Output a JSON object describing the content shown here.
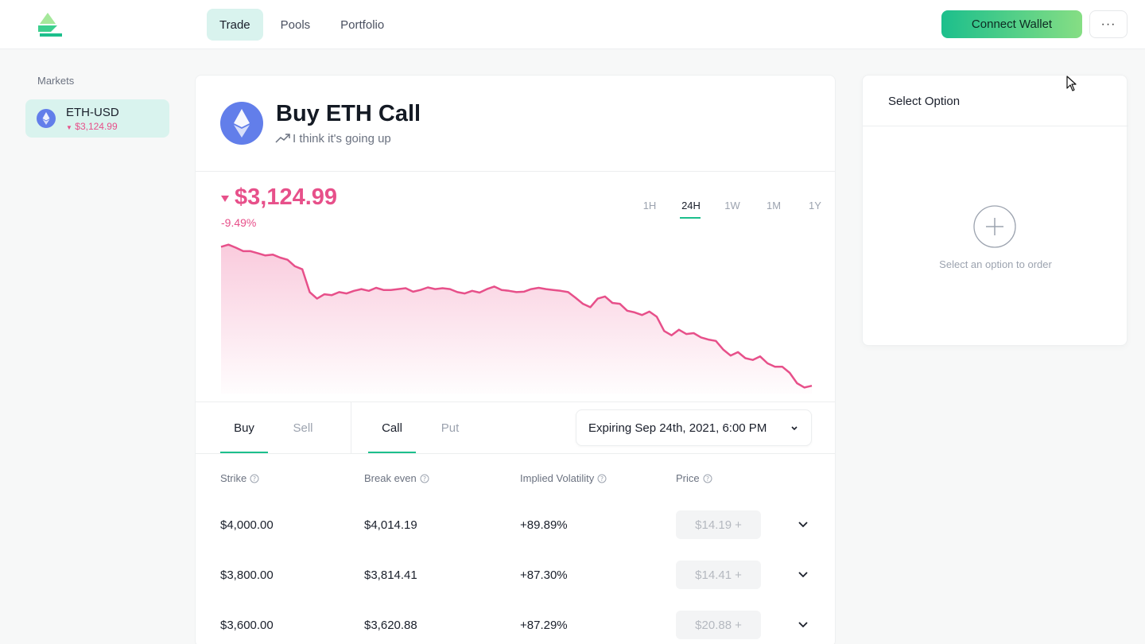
{
  "header": {
    "nav_tabs": [
      {
        "label": "Trade",
        "active": true
      },
      {
        "label": "Pools",
        "active": false
      },
      {
        "label": "Portfolio",
        "active": false
      }
    ],
    "connect_label": "Connect Wallet",
    "more_label": "···"
  },
  "sidebar": {
    "label": "Markets",
    "markets": [
      {
        "name": "ETH-USD",
        "price": "$3,124.99",
        "icon": "ethereum-icon",
        "direction": "down"
      }
    ]
  },
  "main": {
    "title": "Buy ETH Call",
    "subtitle": "I think it's going up",
    "price": "$3,124.99",
    "change": "-9.49%",
    "ranges": [
      {
        "label": "1H",
        "active": false
      },
      {
        "label": "24H",
        "active": true
      },
      {
        "label": "1W",
        "active": false
      },
      {
        "label": "1M",
        "active": false
      },
      {
        "label": "1Y",
        "active": false
      }
    ],
    "side_tabs": [
      {
        "label": "Buy",
        "active": true
      },
      {
        "label": "Sell",
        "active": false
      }
    ],
    "type_tabs": [
      {
        "label": "Call",
        "active": true
      },
      {
        "label": "Put",
        "active": false
      }
    ],
    "expiry": "Expiring Sep 24th, 2021, 6:00 PM",
    "columns": [
      "Strike",
      "Break even",
      "Implied Volatility",
      "Price"
    ],
    "rows": [
      {
        "strike": "$4,000.00",
        "break_even": "$4,014.19",
        "iv": "+89.89%",
        "price": "$14.19"
      },
      {
        "strike": "$3,800.00",
        "break_even": "$3,814.41",
        "iv": "+87.30%",
        "price": "$14.41"
      },
      {
        "strike": "$3,600.00",
        "break_even": "$3,620.88",
        "iv": "+87.29%",
        "price": "$20.88"
      }
    ]
  },
  "order_panel": {
    "title": "Select Option",
    "hint": "Select an option to order"
  },
  "colors": {
    "accent": "#1cbf8c",
    "negative": "#e7508a",
    "active_bg": "#d9f3ee"
  },
  "chart_data": {
    "type": "area",
    "ylim": [
      3110,
      3460
    ],
    "values": [
      3450,
      3455,
      3448,
      3440,
      3440,
      3435,
      3430,
      3432,
      3425,
      3420,
      3405,
      3398,
      3345,
      3330,
      3340,
      3338,
      3345,
      3342,
      3348,
      3352,
      3348,
      3355,
      3350,
      3350,
      3352,
      3354,
      3346,
      3350,
      3356,
      3352,
      3354,
      3352,
      3345,
      3342,
      3348,
      3344,
      3352,
      3358,
      3350,
      3348,
      3345,
      3346,
      3352,
      3355,
      3352,
      3350,
      3348,
      3345,
      3332,
      3318,
      3310,
      3330,
      3335,
      3320,
      3318,
      3302,
      3298,
      3292,
      3300,
      3288,
      3255,
      3245,
      3258,
      3248,
      3250,
      3240,
      3235,
      3232,
      3212,
      3198,
      3206,
      3192,
      3188,
      3196,
      3180,
      3172,
      3172,
      3158,
      3134,
      3124,
      3128
    ]
  }
}
